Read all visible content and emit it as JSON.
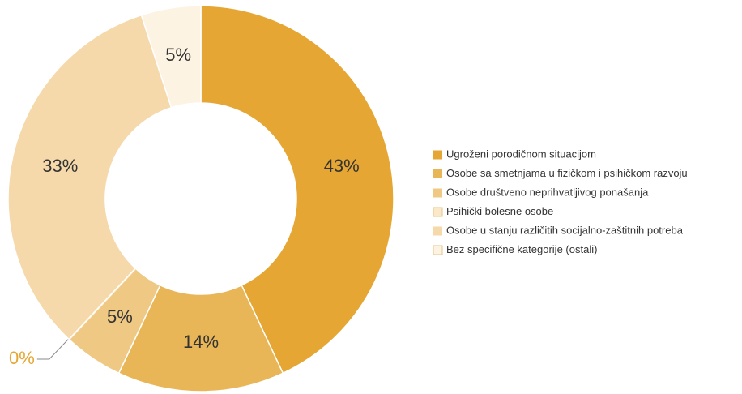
{
  "chart_data": {
    "type": "donut",
    "categories": [
      "Ugroženi porodičnom situacijom",
      "Osobe sa smetnjama u fizičkom i psihičkom razvoju",
      "Osobe društveno neprihvatljivog ponašanja",
      "Psihički bolesne osobe",
      "Osobe u stanju različitih socijalno-zaštitnih potreba",
      "Bez specifične kategorije (ostali)"
    ],
    "values": [
      43,
      14,
      5,
      0,
      33,
      5
    ],
    "value_labels": [
      "43%",
      "14%",
      "5%",
      "0%",
      "33%",
      "5%"
    ],
    "colors": [
      "#e5a633",
      "#e8b657",
      "#efc883",
      "#fbe8c8",
      "#f5d9aa",
      "#fdf3e3"
    ],
    "legend": "right"
  }
}
